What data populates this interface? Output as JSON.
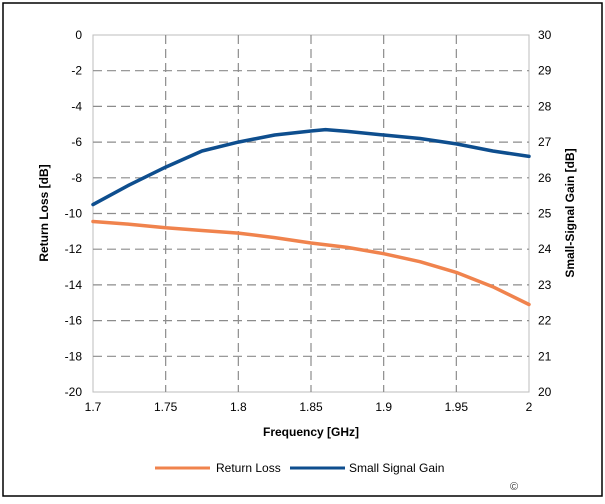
{
  "chart_data": {
    "type": "line",
    "title": "",
    "xlabel": "Frequency [GHz]",
    "ylabel_left": "Return Loss [dB]",
    "ylabel_right": "Small-Signal Gain [dB]",
    "xlim": [
      1.7,
      2.0
    ],
    "ylim_left": [
      -20,
      0
    ],
    "ylim_right": [
      20,
      30
    ],
    "x_ticks": [
      "1.7",
      "1.75",
      "1.8",
      "1.85",
      "1.9",
      "1.95",
      "2"
    ],
    "y_left_ticks": [
      "0",
      "-2",
      "-4",
      "-6",
      "-8",
      "-10",
      "-12",
      "-14",
      "-16",
      "-18",
      "-20"
    ],
    "y_right_ticks": [
      "30",
      "29",
      "28",
      "27",
      "26",
      "25",
      "24",
      "23",
      "22",
      "21",
      "20"
    ],
    "grid": true,
    "grid_style": "dashed",
    "legend_position": "bottom",
    "copyright_mark": "©",
    "series": [
      {
        "name": "Return Loss",
        "axis": "left",
        "color": "#F0834D",
        "x": [
          1.7,
          1.725,
          1.75,
          1.775,
          1.8,
          1.825,
          1.85,
          1.875,
          1.9,
          1.925,
          1.95,
          1.975,
          2.0
        ],
        "y": [
          -10.45,
          -10.6,
          -10.8,
          -10.95,
          -11.1,
          -11.35,
          -11.65,
          -11.9,
          -12.25,
          -12.7,
          -13.3,
          -14.1,
          -15.1
        ]
      },
      {
        "name": "Small Signal Gain",
        "axis": "right",
        "color": "#0E4E8E",
        "x": [
          1.7,
          1.725,
          1.75,
          1.775,
          1.8,
          1.825,
          1.85,
          1.86,
          1.875,
          1.9,
          1.925,
          1.95,
          1.975,
          2.0
        ],
        "y": [
          25.25,
          25.8,
          26.3,
          26.75,
          27.0,
          27.2,
          27.31,
          27.35,
          27.3,
          27.2,
          27.1,
          26.95,
          26.75,
          26.6
        ]
      }
    ]
  }
}
